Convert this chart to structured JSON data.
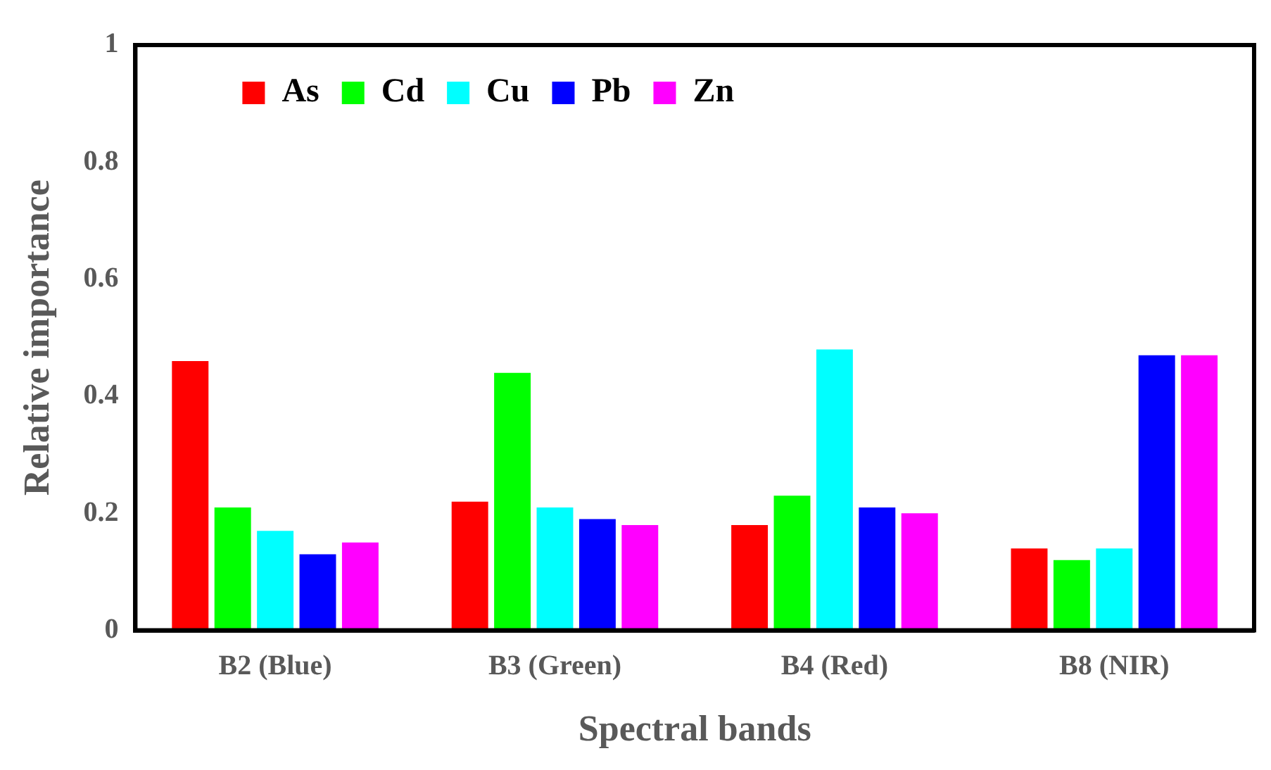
{
  "chart_data": {
    "type": "bar",
    "xlabel": "Spectral bands",
    "ylabel": "Relative importance",
    "categories": [
      "B2 (Blue)",
      "B3 (Green)",
      "B4 (Red)",
      "B8 (NIR)"
    ],
    "series": [
      {
        "name": "As",
        "color": "#ff0000",
        "values": [
          0.46,
          0.22,
          0.18,
          0.14
        ]
      },
      {
        "name": "Cd",
        "color": "#00ff00",
        "values": [
          0.21,
          0.44,
          0.23,
          0.12
        ]
      },
      {
        "name": "Cu",
        "color": "#00ffff",
        "values": [
          0.17,
          0.21,
          0.48,
          0.14
        ]
      },
      {
        "name": "Pb",
        "color": "#0000ff",
        "values": [
          0.13,
          0.19,
          0.21,
          0.47
        ]
      },
      {
        "name": "Zn",
        "color": "#ff00ff",
        "values": [
          0.15,
          0.18,
          0.2,
          0.47
        ]
      }
    ],
    "ylim": [
      0,
      1
    ],
    "yticks": [
      0,
      0.2,
      0.4,
      0.6,
      0.8,
      1
    ],
    "grid": false,
    "legend": "top left"
  }
}
